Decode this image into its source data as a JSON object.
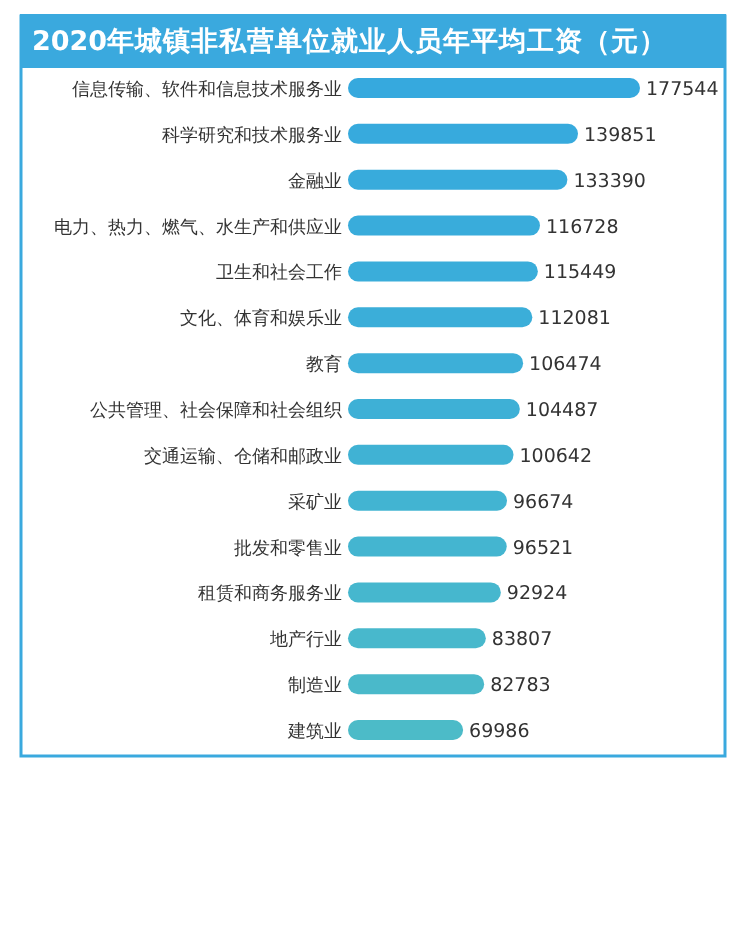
{
  "chart_data": {
    "type": "bar",
    "orientation": "horizontal",
    "title": "2020年城镇非私营单位就业人员年平均工资（元）",
    "categories": [
      "信息传输、软件和信息技术服务业",
      "科学研究和技术服务业",
      "金融业",
      "电力、热力、燃气、水生产和供应业",
      "卫生和社会工作",
      "文化、体育和娱乐业",
      "教育",
      "公共管理、社会保障和社会组织",
      "交通运输、仓储和邮政业",
      "采矿业",
      "批发和零售业",
      "租赁和商务服务业",
      "地产行业",
      "制造业",
      "建筑业"
    ],
    "values": [
      177544,
      139851,
      133390,
      116728,
      115449,
      112081,
      106474,
      104487,
      100642,
      96674,
      96521,
      92924,
      83807,
      82783,
      69986
    ],
    "colors": [
      "#36a9de",
      "#37aadd",
      "#38abdc",
      "#39acdb",
      "#3aadda",
      "#3baed9",
      "#3dafd8",
      "#3eb0d6",
      "#40b2d4",
      "#42b4d2",
      "#44b5d0",
      "#46b7ce",
      "#48b8cc",
      "#4ab9ca",
      "#4cbbc8"
    ],
    "data_labels": true
  }
}
